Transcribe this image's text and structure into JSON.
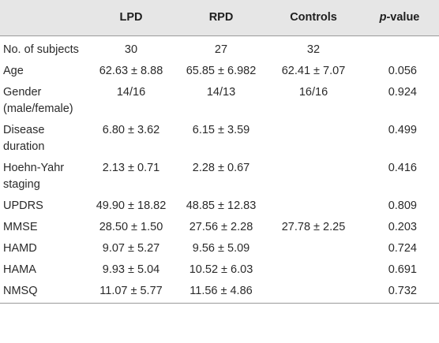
{
  "header": {
    "label": "",
    "lpd": "LPD",
    "rpd": "RPD",
    "controls": "Controls",
    "p_italic": "p",
    "p_rest": "-value"
  },
  "rows": [
    {
      "label": "No. of subjects",
      "lpd": "30",
      "rpd": "27",
      "controls": "32",
      "p": ""
    },
    {
      "label": "Age",
      "lpd": "62.63 ± 8.88",
      "rpd": "65.85 ± 6.982",
      "controls": "62.41 ± 7.07",
      "p": "0.056"
    },
    {
      "label": "Gender (male/female)",
      "lpd": "14/16",
      "rpd": "14/13",
      "controls": "16/16",
      "p": "0.924"
    },
    {
      "label": "Disease duration",
      "lpd": "6.80 ± 3.62",
      "rpd": "6.15 ± 3.59",
      "controls": "",
      "p": "0.499"
    },
    {
      "label": "Hoehn-Yahr staging",
      "lpd": "2.13 ± 0.71",
      "rpd": "2.28 ± 0.67",
      "controls": "",
      "p": "0.416"
    },
    {
      "label": "UPDRS",
      "lpd": "49.90 ± 18.82",
      "rpd": "48.85 ± 12.83",
      "controls": "",
      "p": "0.809"
    },
    {
      "label": "MMSE",
      "lpd": "28.50 ± 1.50",
      "rpd": "27.56 ± 2.28",
      "controls": "27.78 ± 2.25",
      "p": "0.203"
    },
    {
      "label": "HAMD",
      "lpd": "9.07 ± 5.27",
      "rpd": "9.56 ± 5.09",
      "controls": "",
      "p": "0.724"
    },
    {
      "label": "HAMA",
      "lpd": "9.93 ± 5.04",
      "rpd": "10.52 ± 6.03",
      "controls": "",
      "p": "0.691"
    },
    {
      "label": "NMSQ",
      "lpd": "11.07 ± 5.77",
      "rpd": "11.56 ± 4.86",
      "controls": "",
      "p": "0.732"
    }
  ]
}
